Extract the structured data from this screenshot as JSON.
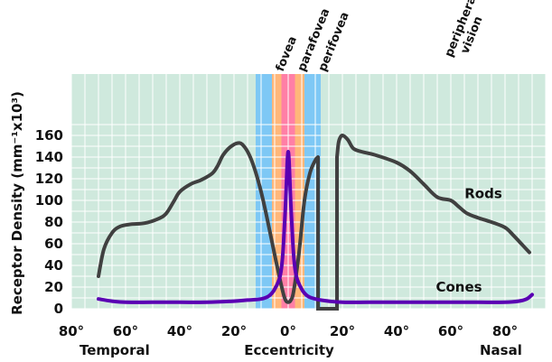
{
  "chart_data": {
    "type": "line",
    "title": "",
    "xlabel": "Eccentricity",
    "ylabel": "Receptor Density (mm⁻¹x10³)",
    "xlim": [
      -80,
      95
    ],
    "ylim": [
      0,
      175
    ],
    "x_ticks": [
      -80,
      -60,
      -40,
      -20,
      0,
      20,
      40,
      60,
      80
    ],
    "x_tick_labels": [
      "80°",
      "60°",
      "40°",
      "20°",
      "0°",
      "20°",
      "40°",
      "60°",
      "80°"
    ],
    "y_ticks": [
      0,
      20,
      40,
      60,
      80,
      100,
      120,
      140,
      160
    ],
    "y_tick_labels": [
      "0",
      "20",
      "40",
      "60",
      "80",
      "100",
      "120",
      "140",
      "160"
    ],
    "side_labels": {
      "left": "Temporal",
      "right": "Nasal"
    },
    "grid": true,
    "regions": [
      {
        "label": "fovea",
        "from": -2.5,
        "to": 2.5,
        "color": "#ff7fa6"
      },
      {
        "label": "parafovea",
        "from": -6,
        "to": 6,
        "color": "#ffb77a"
      },
      {
        "label": "perifovea",
        "from": -12,
        "to": 12,
        "color": "#7ec8f5"
      },
      {
        "label": "peripheral vision",
        "from": 12,
        "to": 95,
        "color": ""
      }
    ],
    "blind_spot": {
      "from": 11,
      "to": 18
    },
    "series": [
      {
        "name": "Rods",
        "color": "#404040",
        "x": [
          -70,
          -68,
          -65,
          -62,
          -58,
          -53,
          -48,
          -45,
          -42,
          -40,
          -36,
          -32,
          -28,
          -26,
          -24,
          -21,
          -18,
          -16,
          -14,
          -12,
          -10,
          -8,
          -6,
          -4,
          -2,
          -1,
          0,
          1,
          2,
          4,
          6,
          8,
          10,
          11
        ],
        "y": [
          30,
          55,
          70,
          76,
          78,
          79,
          83,
          88,
          100,
          108,
          115,
          119,
          125,
          132,
          142,
          150,
          153,
          149,
          140,
          126,
          108,
          86,
          62,
          38,
          16,
          8,
          6,
          8,
          16,
          52,
          100,
          125,
          137,
          140
        ]
      },
      {
        "name": "",
        "color": "#404040",
        "x": [
          18,
          18.5,
          19,
          20,
          22,
          24,
          27,
          32,
          40,
          45,
          50,
          55,
          60,
          63,
          66,
          70,
          75,
          80,
          83,
          86,
          89
        ],
        "y": [
          140,
          152,
          157,
          160,
          156,
          148,
          145,
          142,
          135,
          127,
          115,
          103,
          100,
          94,
          88,
          84,
          80,
          75,
          68,
          60,
          52
        ]
      },
      {
        "name": "Cones",
        "color": "#5a00b3",
        "x": [
          -70,
          -65,
          -60,
          -50,
          -40,
          -30,
          -20,
          -15,
          -10,
          -7,
          -5,
          -3,
          -2,
          -1,
          0,
          1,
          2,
          3,
          5,
          7,
          10,
          15,
          20,
          30,
          40,
          50,
          60,
          70,
          80,
          85,
          88,
          90
        ],
        "y": [
          9,
          7,
          6,
          6,
          6,
          6,
          7,
          8,
          9,
          12,
          18,
          30,
          50,
          95,
          145,
          95,
          50,
          30,
          18,
          12,
          9,
          7,
          6,
          6,
          6,
          6,
          6,
          6,
          6,
          7,
          9,
          13
        ]
      }
    ],
    "annotations": [
      {
        "text": "Rods",
        "x": 72,
        "y": 102
      },
      {
        "text": "Cones",
        "x": 63,
        "y": 16
      }
    ]
  }
}
